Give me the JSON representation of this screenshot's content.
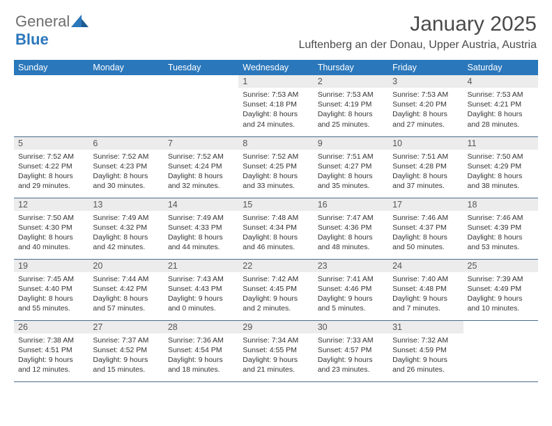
{
  "logo": {
    "text1": "General",
    "text2": "Blue"
  },
  "title": "January 2025",
  "location": "Luftenberg an der Donau, Upper Austria, Austria",
  "colors": {
    "header_bg": "#2a77bb",
    "header_text": "#ffffff",
    "daynum_bg": "#ececec",
    "row_border": "#4a6a8a",
    "logo_gray": "#6d6d6d",
    "logo_blue": "#2a77bb",
    "body_text": "#333333"
  },
  "day_names": [
    "Sunday",
    "Monday",
    "Tuesday",
    "Wednesday",
    "Thursday",
    "Friday",
    "Saturday"
  ],
  "weeks": [
    [
      null,
      null,
      null,
      {
        "n": "1",
        "sr": "7:53 AM",
        "ss": "4:18 PM",
        "dh": "8",
        "dm": "24"
      },
      {
        "n": "2",
        "sr": "7:53 AM",
        "ss": "4:19 PM",
        "dh": "8",
        "dm": "25"
      },
      {
        "n": "3",
        "sr": "7:53 AM",
        "ss": "4:20 PM",
        "dh": "8",
        "dm": "27"
      },
      {
        "n": "4",
        "sr": "7:53 AM",
        "ss": "4:21 PM",
        "dh": "8",
        "dm": "28"
      }
    ],
    [
      {
        "n": "5",
        "sr": "7:52 AM",
        "ss": "4:22 PM",
        "dh": "8",
        "dm": "29"
      },
      {
        "n": "6",
        "sr": "7:52 AM",
        "ss": "4:23 PM",
        "dh": "8",
        "dm": "30"
      },
      {
        "n": "7",
        "sr": "7:52 AM",
        "ss": "4:24 PM",
        "dh": "8",
        "dm": "32"
      },
      {
        "n": "8",
        "sr": "7:52 AM",
        "ss": "4:25 PM",
        "dh": "8",
        "dm": "33"
      },
      {
        "n": "9",
        "sr": "7:51 AM",
        "ss": "4:27 PM",
        "dh": "8",
        "dm": "35"
      },
      {
        "n": "10",
        "sr": "7:51 AM",
        "ss": "4:28 PM",
        "dh": "8",
        "dm": "37"
      },
      {
        "n": "11",
        "sr": "7:50 AM",
        "ss": "4:29 PM",
        "dh": "8",
        "dm": "38"
      }
    ],
    [
      {
        "n": "12",
        "sr": "7:50 AM",
        "ss": "4:30 PM",
        "dh": "8",
        "dm": "40"
      },
      {
        "n": "13",
        "sr": "7:49 AM",
        "ss": "4:32 PM",
        "dh": "8",
        "dm": "42"
      },
      {
        "n": "14",
        "sr": "7:49 AM",
        "ss": "4:33 PM",
        "dh": "8",
        "dm": "44"
      },
      {
        "n": "15",
        "sr": "7:48 AM",
        "ss": "4:34 PM",
        "dh": "8",
        "dm": "46"
      },
      {
        "n": "16",
        "sr": "7:47 AM",
        "ss": "4:36 PM",
        "dh": "8",
        "dm": "48"
      },
      {
        "n": "17",
        "sr": "7:46 AM",
        "ss": "4:37 PM",
        "dh": "8",
        "dm": "50"
      },
      {
        "n": "18",
        "sr": "7:46 AM",
        "ss": "4:39 PM",
        "dh": "8",
        "dm": "53"
      }
    ],
    [
      {
        "n": "19",
        "sr": "7:45 AM",
        "ss": "4:40 PM",
        "dh": "8",
        "dm": "55"
      },
      {
        "n": "20",
        "sr": "7:44 AM",
        "ss": "4:42 PM",
        "dh": "8",
        "dm": "57"
      },
      {
        "n": "21",
        "sr": "7:43 AM",
        "ss": "4:43 PM",
        "dh": "9",
        "dm": "0"
      },
      {
        "n": "22",
        "sr": "7:42 AM",
        "ss": "4:45 PM",
        "dh": "9",
        "dm": "2"
      },
      {
        "n": "23",
        "sr": "7:41 AM",
        "ss": "4:46 PM",
        "dh": "9",
        "dm": "5"
      },
      {
        "n": "24",
        "sr": "7:40 AM",
        "ss": "4:48 PM",
        "dh": "9",
        "dm": "7"
      },
      {
        "n": "25",
        "sr": "7:39 AM",
        "ss": "4:49 PM",
        "dh": "9",
        "dm": "10"
      }
    ],
    [
      {
        "n": "26",
        "sr": "7:38 AM",
        "ss": "4:51 PM",
        "dh": "9",
        "dm": "12"
      },
      {
        "n": "27",
        "sr": "7:37 AM",
        "ss": "4:52 PM",
        "dh": "9",
        "dm": "15"
      },
      {
        "n": "28",
        "sr": "7:36 AM",
        "ss": "4:54 PM",
        "dh": "9",
        "dm": "18"
      },
      {
        "n": "29",
        "sr": "7:34 AM",
        "ss": "4:55 PM",
        "dh": "9",
        "dm": "21"
      },
      {
        "n": "30",
        "sr": "7:33 AM",
        "ss": "4:57 PM",
        "dh": "9",
        "dm": "23"
      },
      {
        "n": "31",
        "sr": "7:32 AM",
        "ss": "4:59 PM",
        "dh": "9",
        "dm": "26"
      },
      null
    ]
  ],
  "labels": {
    "sunrise": "Sunrise:",
    "sunset": "Sunset:",
    "daylight": "Daylight:",
    "hours": "hours",
    "and": "and",
    "minutes": "minutes."
  }
}
